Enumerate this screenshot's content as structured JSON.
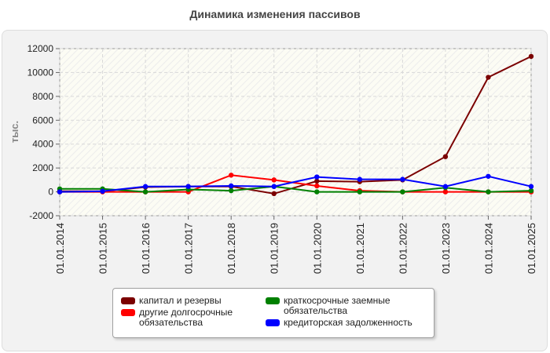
{
  "title": "Динамика изменения пассивов",
  "chart_data": {
    "type": "line",
    "title": "Динамика изменения пассивов",
    "xlabel": "",
    "ylabel": "тыс.",
    "ylim": [
      -2000,
      12000
    ],
    "yticks": [
      -2000,
      0,
      2000,
      4000,
      6000,
      8000,
      10000,
      12000
    ],
    "categories": [
      "01.01.2014",
      "01.01.2015",
      "01.01.2016",
      "01.01.2017",
      "01.01.2018",
      "01.01.2019",
      "01.01.2020",
      "01.01.2021",
      "01.01.2022",
      "01.01.2023",
      "01.01.2024",
      "01.01.2025"
    ],
    "series": [
      {
        "name": "капитал и резервы",
        "color": "#7b0000",
        "values": [
          50,
          50,
          400,
          450,
          450,
          -150,
          900,
          850,
          1000,
          2950,
          9600,
          11350
        ]
      },
      {
        "name": "другие долгосрочные обязательства",
        "color": "#ff0000",
        "values": [
          0,
          0,
          0,
          0,
          1400,
          1000,
          500,
          100,
          0,
          0,
          0,
          0
        ]
      },
      {
        "name": "краткосрочные заемные обязательства",
        "color": "#008000",
        "values": [
          250,
          250,
          0,
          200,
          100,
          450,
          0,
          0,
          0,
          350,
          0,
          100
        ]
      },
      {
        "name": "кредиторская задолженность",
        "color": "#0000ff",
        "values": [
          0,
          50,
          450,
          450,
          500,
          450,
          1250,
          1050,
          1050,
          450,
          1300,
          450
        ]
      }
    ],
    "legend": "bottom-center"
  }
}
